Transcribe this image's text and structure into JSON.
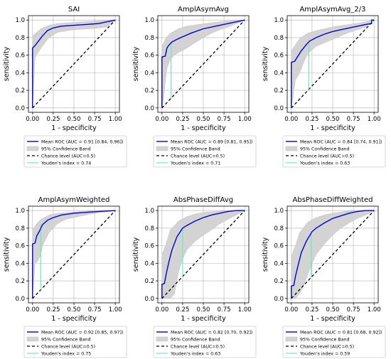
{
  "style": {
    "mean_color": "#0000cc",
    "band_color": "#d3d3d3",
    "chance_color": "#000000",
    "youden_color": "#6ee6c8",
    "grid_color": "#b0b0b0"
  },
  "chart_data": [
    {
      "type": "line",
      "title": "SAI",
      "xlabel": "1 - specificity",
      "ylabel": "sensitivity",
      "xlim": [
        0,
        1
      ],
      "ylim": [
        0,
        1
      ],
      "xticks": [
        "0.00",
        "0.25",
        "0.50",
        "0.75",
        "1.00"
      ],
      "yticks": [
        "0.0",
        "0.2",
        "0.4",
        "0.6",
        "0.8",
        "1.0"
      ],
      "grid": true,
      "legend": "below",
      "mean_roc": {
        "x": [
          0,
          0,
          0.03,
          0.08,
          0.12,
          0.18,
          0.25,
          0.35,
          0.5,
          0.65,
          0.8,
          0.9,
          1.0
        ],
        "y": [
          0,
          0.68,
          0.71,
          0.77,
          0.82,
          0.88,
          0.91,
          0.93,
          0.94,
          0.95,
          0.96,
          0.98,
          1.0
        ]
      },
      "band_upper": {
        "x": [
          0,
          0,
          0.05,
          0.1,
          0.2,
          0.3,
          0.45,
          0.6,
          0.8,
          1.0
        ],
        "y": [
          0,
          0.82,
          0.86,
          0.9,
          0.94,
          0.96,
          0.97,
          0.98,
          0.99,
          1.0
        ]
      },
      "band_lower": {
        "x": [
          0,
          0.03,
          0.06,
          0.1,
          0.15,
          0.2,
          0.3,
          0.5,
          0.7,
          0.9,
          1.0
        ],
        "y": [
          0,
          0.57,
          0.62,
          0.68,
          0.74,
          0.8,
          0.86,
          0.89,
          0.9,
          0.92,
          1.0
        ]
      },
      "youden": {
        "x": 0.0,
        "y0": 0.0,
        "y1": 0.68
      },
      "legend_entries": [
        "Mean ROC (AUC = 0.91 [0.84, 0.96])",
        "95% Confidence Band",
        "Chance level (AUC=0.5)",
        "Youden's index = 0.74"
      ]
    },
    {
      "type": "line",
      "title": "AmplAsymAvg",
      "xlabel": "1 - specificity",
      "ylabel": "sensitivity",
      "xlim": [
        0,
        1
      ],
      "ylim": [
        0,
        1
      ],
      "xticks": [
        "0.00",
        "0.25",
        "0.50",
        "0.75",
        "1.00"
      ],
      "yticks": [
        "0.0",
        "0.2",
        "0.4",
        "0.6",
        "0.8",
        "1.0"
      ],
      "grid": true,
      "legend": "below",
      "mean_roc": {
        "x": [
          0,
          0,
          0.04,
          0.06,
          0.08,
          0.12,
          0.18,
          0.25,
          0.35,
          0.5,
          0.65,
          0.8,
          0.9,
          0.95,
          1.0
        ],
        "y": [
          0,
          0.58,
          0.59,
          0.68,
          0.71,
          0.75,
          0.78,
          0.81,
          0.85,
          0.9,
          0.93,
          0.96,
          0.98,
          0.99,
          1.0
        ]
      },
      "band_upper": {
        "x": [
          0,
          0,
          0.05,
          0.1,
          0.2,
          0.3,
          0.45,
          0.6,
          0.8,
          1.0
        ],
        "y": [
          0,
          0.7,
          0.8,
          0.85,
          0.9,
          0.93,
          0.95,
          0.97,
          0.99,
          1.0
        ]
      },
      "band_lower": {
        "x": [
          0,
          0.02,
          0.04,
          0.06,
          0.1,
          0.15,
          0.2,
          0.3,
          0.4,
          0.5,
          0.6,
          0.7,
          0.8,
          0.9,
          1.0
        ],
        "y": [
          0,
          0.1,
          0.3,
          0.45,
          0.55,
          0.6,
          0.63,
          0.68,
          0.74,
          0.8,
          0.85,
          0.89,
          0.92,
          0.96,
          1.0
        ]
      },
      "youden": {
        "x": 0.11,
        "y0": 0.11,
        "y1": 0.74
      },
      "legend_entries": [
        "Mean ROC (AUC = 0.89 [0.81, 0.95])",
        "95% Confidence Band",
        "Chance level (AUC=0.5)",
        "Youden's index = 0.71"
      ]
    },
    {
      "type": "line",
      "title": "AmplAsymAvg_2/3",
      "xlabel": "1 - specificity",
      "ylabel": "sensitivity",
      "xlim": [
        0,
        1
      ],
      "ylim": [
        0,
        1
      ],
      "xticks": [
        "0.00",
        "0.25",
        "0.50",
        "0.75",
        "1.00"
      ],
      "yticks": [
        "0.0",
        "0.2",
        "0.4",
        "0.6",
        "0.8",
        "1.0"
      ],
      "grid": true,
      "legend": "below",
      "mean_roc": {
        "x": [
          0,
          0,
          0.04,
          0.08,
          0.12,
          0.18,
          0.22,
          0.3,
          0.4,
          0.5,
          0.6,
          0.7,
          0.8,
          0.9,
          0.97,
          0.97,
          1.0
        ],
        "y": [
          0,
          0.52,
          0.53,
          0.59,
          0.65,
          0.72,
          0.76,
          0.8,
          0.84,
          0.87,
          0.89,
          0.91,
          0.93,
          0.95,
          0.96,
          1.0,
          1.0
        ]
      },
      "band_upper": {
        "x": [
          0,
          0,
          0.05,
          0.1,
          0.2,
          0.3,
          0.4,
          0.55,
          0.7,
          0.85,
          1.0
        ],
        "y": [
          0,
          0.65,
          0.72,
          0.79,
          0.85,
          0.88,
          0.9,
          0.93,
          0.95,
          0.97,
          1.0
        ]
      },
      "band_lower": {
        "x": [
          0,
          0.05,
          0.1,
          0.15,
          0.2,
          0.3,
          0.4,
          0.5,
          0.6,
          0.7,
          0.8,
          0.9,
          1.0
        ],
        "y": [
          0,
          0.32,
          0.4,
          0.52,
          0.62,
          0.7,
          0.74,
          0.78,
          0.82,
          0.86,
          0.89,
          0.92,
          1.0
        ]
      },
      "youden": {
        "x": 0.21,
        "y0": 0.21,
        "y1": 0.74
      },
      "legend_entries": [
        "Mean ROC (AUC = 0.84 [0.74, 0.91])",
        "95% Confidence Band",
        "Chance level (AUC=0.5)",
        "Youden's index = 0.63"
      ]
    },
    {
      "type": "line",
      "title": "AmplAsymWeighted",
      "xlabel": "1 - specificity",
      "ylabel": "sensitivity",
      "xlim": [
        0,
        1
      ],
      "ylim": [
        0,
        1
      ],
      "xticks": [
        "0.00",
        "0.25",
        "0.50",
        "0.75",
        "1.00"
      ],
      "yticks": [
        "0.0",
        "0.2",
        "0.4",
        "0.6",
        "0.8",
        "1.0"
      ],
      "grid": true,
      "legend": "below",
      "mean_roc": {
        "x": [
          0,
          0,
          0.03,
          0.05,
          0.08,
          0.12,
          0.18,
          0.25,
          0.35,
          0.5,
          0.65,
          0.8,
          0.9,
          1.0
        ],
        "y": [
          0,
          0.62,
          0.63,
          0.71,
          0.76,
          0.84,
          0.89,
          0.92,
          0.95,
          0.97,
          0.98,
          0.99,
          0.995,
          1.0
        ]
      },
      "band_upper": {
        "x": [
          0,
          0,
          0.05,
          0.1,
          0.2,
          0.3,
          0.45,
          0.6,
          0.8,
          1.0
        ],
        "y": [
          0,
          0.78,
          0.85,
          0.9,
          0.95,
          0.97,
          0.98,
          0.99,
          1.0,
          1.0
        ]
      },
      "band_lower": {
        "x": [
          0,
          0.03,
          0.06,
          0.1,
          0.12,
          0.2,
          0.3,
          0.4,
          0.55,
          0.7,
          0.85,
          1.0
        ],
        "y": [
          0,
          0.4,
          0.42,
          0.5,
          0.6,
          0.75,
          0.85,
          0.9,
          0.93,
          0.96,
          0.98,
          1.0
        ]
      },
      "youden": {
        "x": 0.1,
        "y0": 0.1,
        "y1": 0.84
      },
      "legend_entries": [
        "Mean ROC (AUC = 0.92 [0.85, 0.97])",
        "95% Confidence Band",
        "Chance level (AUC=0.5)",
        "Youden's index = 0.75"
      ]
    },
    {
      "type": "line",
      "title": "AbsPhaseDiffAvg",
      "xlabel": "1 - specificity",
      "ylabel": "sensitivity",
      "xlim": [
        0,
        1
      ],
      "ylim": [
        0,
        1
      ],
      "xticks": [
        "0.00",
        "0.25",
        "0.50",
        "0.75",
        "1.00"
      ],
      "yticks": [
        "0.0",
        "0.2",
        "0.4",
        "0.6",
        "0.8",
        "1.0"
      ],
      "grid": true,
      "legend": "below",
      "mean_roc": {
        "x": [
          0,
          0,
          0.03,
          0.05,
          0.08,
          0.12,
          0.18,
          0.25,
          0.3,
          0.4,
          0.5,
          0.6,
          0.7,
          0.8,
          0.9,
          1.0
        ],
        "y": [
          0,
          0.16,
          0.17,
          0.27,
          0.4,
          0.55,
          0.7,
          0.8,
          0.83,
          0.88,
          0.92,
          0.95,
          0.97,
          0.99,
          1.0,
          1.0
        ]
      },
      "band_upper": {
        "x": [
          0,
          0,
          0.05,
          0.1,
          0.2,
          0.3,
          0.4,
          0.5,
          0.65,
          0.8,
          1.0
        ],
        "y": [
          0,
          0.5,
          0.62,
          0.78,
          0.88,
          0.93,
          0.96,
          0.98,
          0.99,
          1.0,
          1.0
        ]
      },
      "band_lower": {
        "x": [
          0,
          0.1,
          0.15,
          0.2,
          0.25,
          0.3,
          0.4,
          0.5,
          0.6,
          0.7,
          0.8,
          0.9,
          1.0
        ],
        "y": [
          0,
          0.0,
          0.05,
          0.3,
          0.45,
          0.55,
          0.65,
          0.72,
          0.78,
          0.85,
          0.9,
          0.95,
          1.0
        ]
      },
      "youden": {
        "x": 0.25,
        "y0": 0.25,
        "y1": 0.8
      },
      "legend_entries": [
        "Mean ROC (AUC = 0.82 [0.70, 0.92])",
        "95% Confidence Band",
        "Chance level (AUC=0.5)",
        "Youden's index = 0.63"
      ]
    },
    {
      "type": "line",
      "title": "AbsPhaseDiffWeighted",
      "xlabel": "1 - specificity",
      "ylabel": "sensitivity",
      "xlim": [
        0,
        1
      ],
      "ylim": [
        0,
        1
      ],
      "xticks": [
        "0.00",
        "0.25",
        "0.50",
        "0.75",
        "1.00"
      ],
      "yticks": [
        "0.0",
        "0.2",
        "0.4",
        "0.6",
        "0.8",
        "1.0"
      ],
      "grid": true,
      "legend": "below",
      "mean_roc": {
        "x": [
          0,
          0,
          0.03,
          0.05,
          0.08,
          0.12,
          0.18,
          0.25,
          0.3,
          0.4,
          0.5,
          0.6,
          0.7,
          0.8,
          0.9,
          1.0
        ],
        "y": [
          0,
          0.14,
          0.15,
          0.25,
          0.37,
          0.52,
          0.65,
          0.76,
          0.8,
          0.86,
          0.91,
          0.94,
          0.97,
          0.99,
          1.0,
          1.0
        ]
      },
      "band_upper": {
        "x": [
          0,
          0,
          0.05,
          0.1,
          0.2,
          0.3,
          0.4,
          0.5,
          0.65,
          0.8,
          1.0
        ],
        "y": [
          0,
          0.48,
          0.6,
          0.75,
          0.87,
          0.92,
          0.95,
          0.97,
          0.99,
          1.0,
          1.0
        ]
      },
      "band_lower": {
        "x": [
          0,
          0.05,
          0.1,
          0.15,
          0.2,
          0.25,
          0.3,
          0.4,
          0.5,
          0.6,
          0.7,
          0.8,
          0.9,
          1.0
        ],
        "y": [
          0,
          0.0,
          0.05,
          0.15,
          0.28,
          0.4,
          0.5,
          0.62,
          0.72,
          0.8,
          0.86,
          0.91,
          0.95,
          1.0
        ]
      },
      "youden": {
        "x": 0.24,
        "y0": 0.24,
        "y1": 0.74
      },
      "legend_entries": [
        "Mean ROC (AUC = 0.81 [0.68, 0.92])",
        "95% Confidence Band",
        "Chance level (AUC=0.5)",
        "Youden's index = 0.59"
      ]
    }
  ]
}
